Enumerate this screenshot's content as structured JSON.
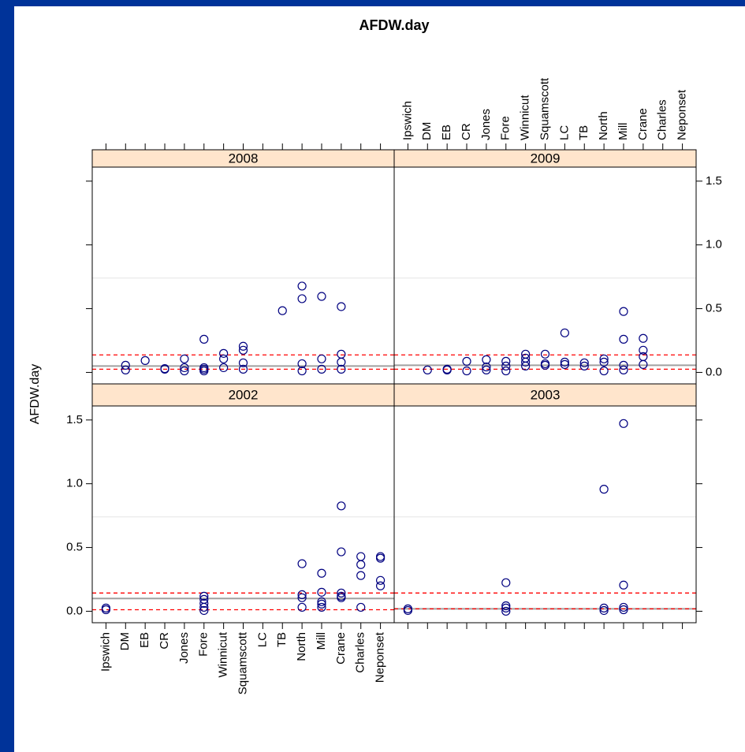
{
  "chart_data": {
    "type": "strip",
    "title": "AFDW.day",
    "ylabel": "AFDW.day",
    "categories": [
      "Ipswich",
      "DM",
      "EB",
      "CR",
      "Jones",
      "Fore",
      "Winnicut",
      "Squamscott",
      "LC",
      "TB",
      "North",
      "Mill",
      "Crane",
      "Charles",
      "Neponset"
    ],
    "xlim": [
      0.3,
      15.7
    ],
    "ylim": [
      -0.09,
      1.61
    ],
    "yticks": [
      {
        "value": 0,
        "label": "0.0"
      },
      {
        "value": 0.5,
        "label": "0.5"
      },
      {
        "value": 1,
        "label": "1.0"
      },
      {
        "value": 1.5,
        "label": "1.5"
      }
    ],
    "ref_line": 0.74,
    "point_color": "#000080",
    "ref_color": "#ff0000",
    "mean_color": "#a0a0a0",
    "strip_color": "#ffe5cc",
    "panels": [
      {
        "name": "2002",
        "x": [
          "Ipswich",
          "Ipswich",
          "Fore",
          "Fore",
          "Fore",
          "Fore",
          "Fore",
          "North",
          "North",
          "North",
          "North",
          "Mill",
          "Mill",
          "Mill",
          "Mill",
          "Mill",
          "Crane",
          "Crane",
          "Crane",
          "Crane",
          "Crane",
          "Charles",
          "Charles",
          "Charles",
          "Charles",
          "Neponset",
          "Neponset",
          "Neponset",
          "Neponset"
        ],
        "values": [
          0.025,
          0.012,
          0.118,
          0.093,
          0.062,
          0.031,
          0.006,
          0.373,
          0.13,
          0.106,
          0.031,
          0.298,
          0.149,
          0.075,
          0.056,
          0.031,
          0.826,
          0.466,
          0.143,
          0.118,
          0.106,
          0.429,
          0.366,
          0.28,
          0.031,
          0.429,
          0.416,
          0.242,
          0.199
        ],
        "ref_lines": [
          0.143,
          0.012
        ],
        "mean_line": 0.1
      },
      {
        "name": "2003",
        "x": [
          "Ipswich",
          "Ipswich",
          "Fore",
          "Fore",
          "Fore",
          "Fore",
          "North",
          "North",
          "North",
          "Mill",
          "Mill",
          "Mill",
          "Mill"
        ],
        "values": [
          0.019,
          0.006,
          0.224,
          0.043,
          0.025,
          0,
          0.957,
          0.025,
          0.006,
          1.472,
          0.205,
          0.031,
          0.012
        ],
        "ref_lines": [
          0.143,
          0.019
        ],
        "mean_line": 0.019
      },
      {
        "name": "2008",
        "x": [
          "DM",
          "DM",
          "EB",
          "CR",
          "CR",
          "Jones",
          "Jones",
          "Jones",
          "Fore",
          "Fore",
          "Fore",
          "Fore",
          "Winnicut",
          "Winnicut",
          "Winnicut",
          "Squamscott",
          "Squamscott",
          "Squamscott",
          "Squamscott",
          "TB",
          "North",
          "North",
          "North",
          "North",
          "Mill",
          "Mill",
          "Mill",
          "Crane",
          "Crane",
          "Crane",
          "Crane"
        ],
        "values": [
          0.056,
          0.019,
          0.093,
          0.03,
          0.025,
          0.106,
          0.037,
          0.012,
          0.26,
          0.037,
          0.025,
          0.012,
          0.149,
          0.106,
          0.037,
          0.205,
          0.174,
          0.075,
          0.025,
          0.484,
          0.677,
          0.578,
          0.068,
          0.012,
          0.596,
          0.106,
          0.025,
          0.516,
          0.143,
          0.081,
          0.025
        ],
        "ref_lines": [
          0.137,
          0.025
        ],
        "mean_line": 0.05
      },
      {
        "name": "2009",
        "x": [
          "DM",
          "EB",
          "EB",
          "CR",
          "CR",
          "Jones",
          "Jones",
          "Jones",
          "Fore",
          "Fore",
          "Fore",
          "Winnicut",
          "Winnicut",
          "Winnicut",
          "Winnicut",
          "Squamscott",
          "Squamscott",
          "Squamscott",
          "LC",
          "LC",
          "LC",
          "TB",
          "TB",
          "North",
          "North",
          "North",
          "Mill",
          "Mill",
          "Mill",
          "Mill",
          "Crane",
          "Crane",
          "Crane",
          "Crane"
        ],
        "values": [
          0.019,
          0.025,
          0.019,
          0.087,
          0.012,
          0.1,
          0.043,
          0.019,
          0.087,
          0.05,
          0.012,
          0.143,
          0.112,
          0.081,
          0.05,
          0.143,
          0.068,
          0.056,
          0.31,
          0.081,
          0.062,
          0.075,
          0.05,
          0.106,
          0.081,
          0.012,
          0.478,
          0.26,
          0.056,
          0.019,
          0.267,
          0.174,
          0.124,
          0.062
        ],
        "ref_lines": [
          0.137,
          0.025
        ],
        "mean_line": 0.056
      }
    ]
  }
}
